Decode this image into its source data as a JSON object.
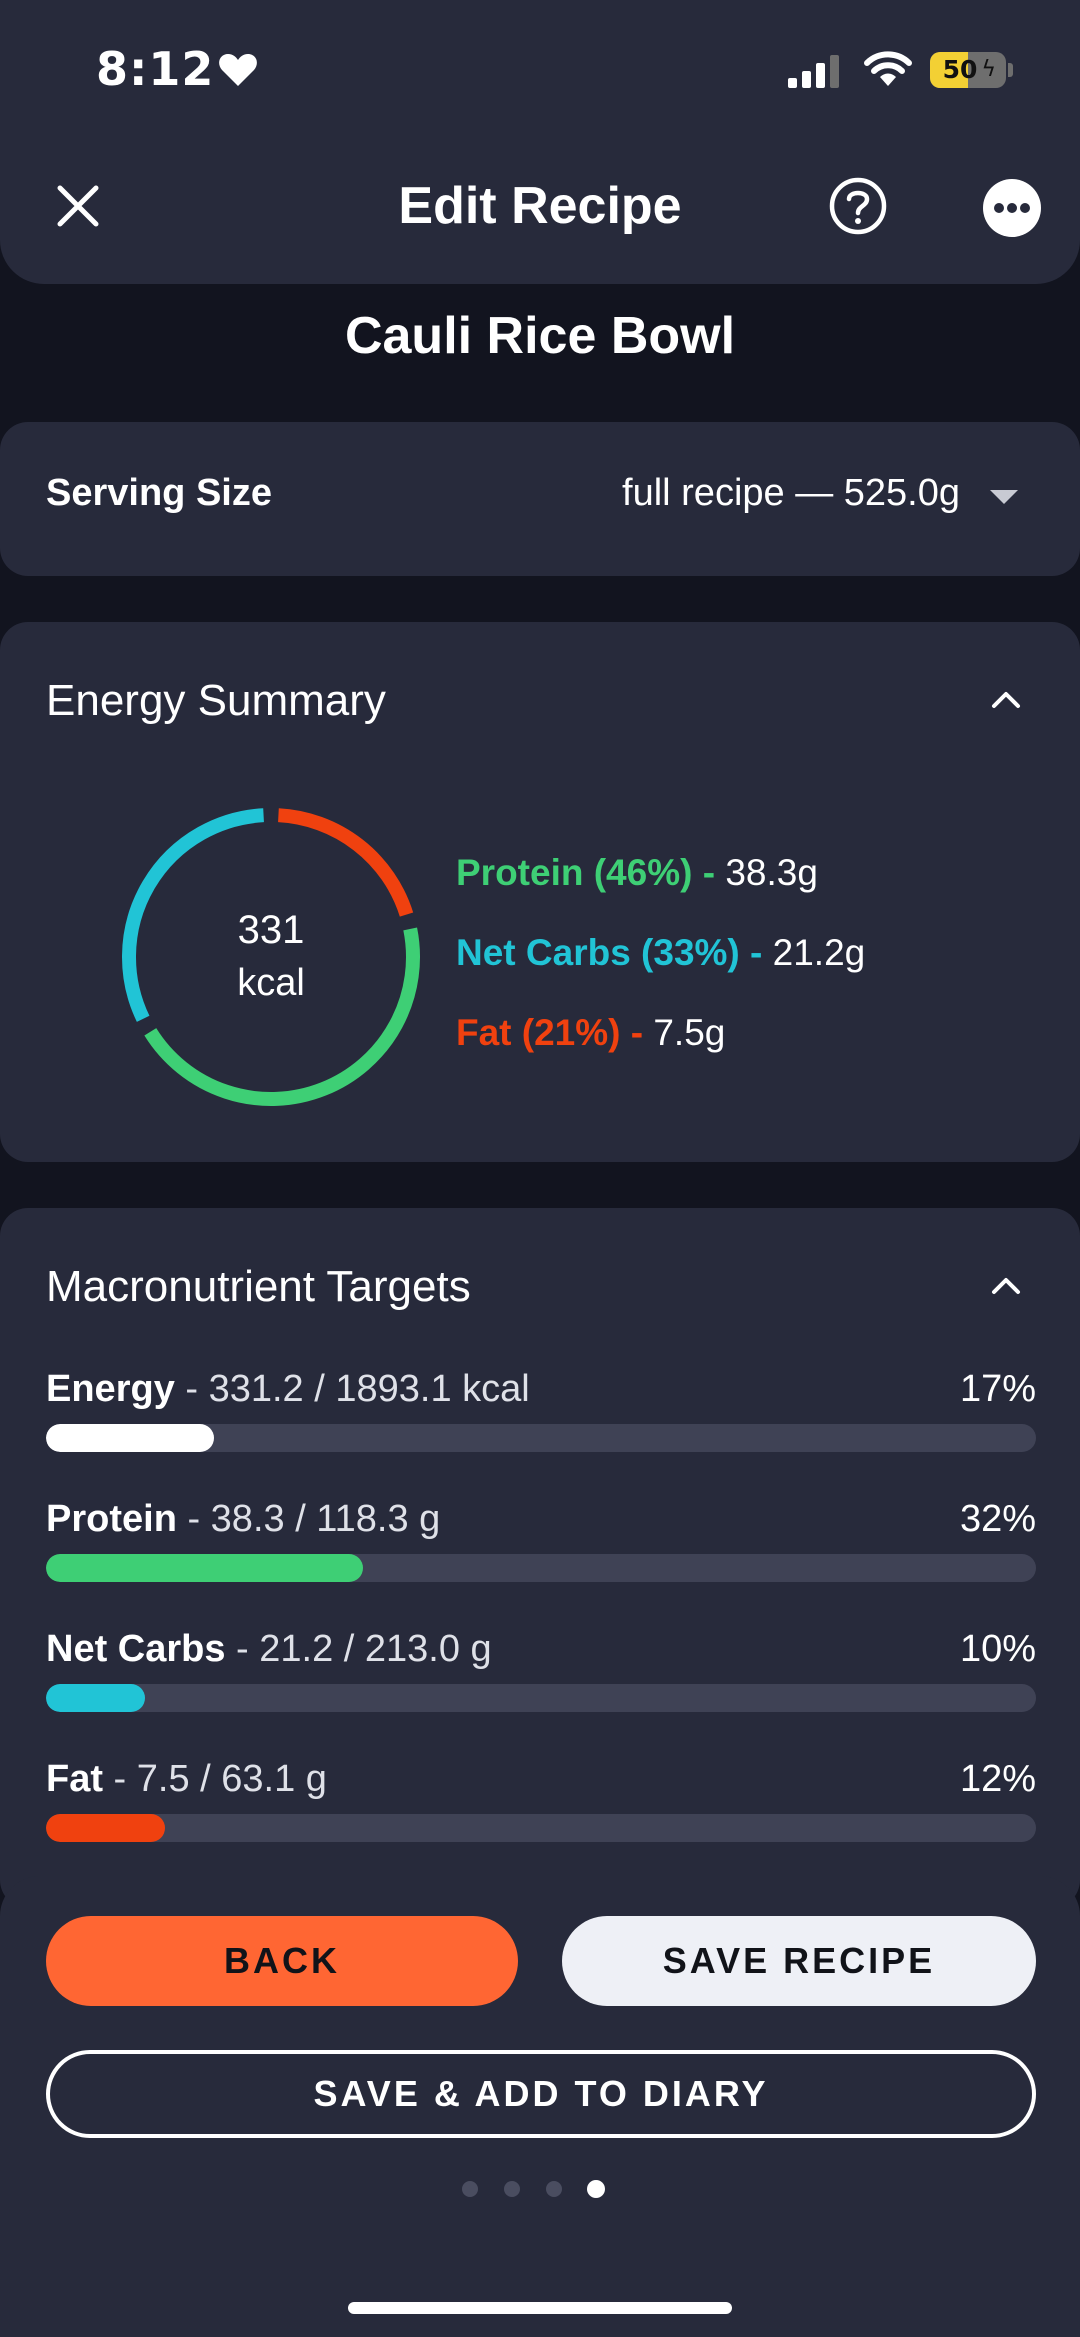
{
  "status_bar": {
    "time": "8:12",
    "battery": "50",
    "battery_level": 0.5
  },
  "header": {
    "title": "Edit Recipe"
  },
  "recipe": {
    "name": "Cauli Rice Bowl"
  },
  "serving": {
    "label": "Serving Size",
    "value": "full recipe  — 525.0g"
  },
  "energy_summary": {
    "title": "Energy Summary",
    "kcal_value": "331",
    "kcal_unit": "kcal",
    "macros": [
      {
        "label": "Protein (46%) -",
        "amount": " 38.3g",
        "color": "#3ecf75",
        "percent": 46
      },
      {
        "label": "Net Carbs (33%) -",
        "amount": " 21.2g",
        "color": "#21c4d6",
        "percent": 33
      },
      {
        "label": "Fat (21%) -",
        "amount": " 7.5g",
        "color": "#f0410f",
        "percent": 21
      }
    ]
  },
  "targets": {
    "title": "Macronutrient Targets",
    "rows": [
      {
        "name": "Energy",
        "detail": " - 331.2 / 1893.1 kcal",
        "percent_label": "17%",
        "fraction": 0.17,
        "color": "#ffffff"
      },
      {
        "name": "Protein",
        "detail": " - 38.3 / 118.3 g",
        "percent_label": "32%",
        "fraction": 0.32,
        "color": "#3ecf75"
      },
      {
        "name": "Net Carbs",
        "detail": " - 21.2 / 213.0 g",
        "percent_label": "10%",
        "fraction": 0.1,
        "color": "#21c4d6"
      },
      {
        "name": "Fat",
        "detail": " - 7.5 / 63.1 g",
        "percent_label": "12%",
        "fraction": 0.12,
        "color": "#f0410f"
      }
    ]
  },
  "actions": {
    "back_label": "BACK",
    "save_label": "SAVE RECIPE",
    "save_diary_label": "SAVE & ADD TO DIARY"
  },
  "pager": {
    "count": 4,
    "active_index": 3
  },
  "colors": {
    "background": "#12141f",
    "card": "#272a3b",
    "accent_orange": "#ff6633"
  }
}
